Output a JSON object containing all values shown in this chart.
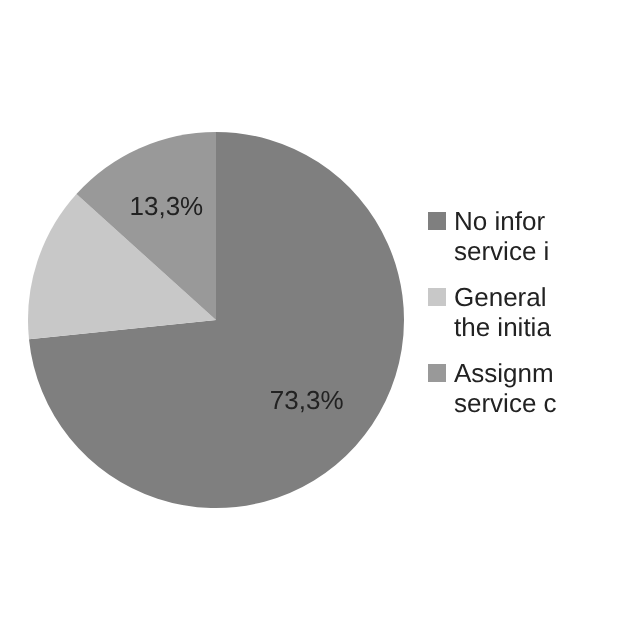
{
  "chart_data": {
    "type": "pie",
    "categories": [
      "No infor service i",
      "General the initia",
      "Assignm service c"
    ],
    "values": [
      73.3,
      13.3,
      13.3
    ],
    "colors": [
      "#7f7f7f",
      "#c8c8c8",
      "#999999"
    ],
    "value_labels": [
      "73,3%",
      null,
      "13,3%"
    ],
    "legend": "right"
  }
}
